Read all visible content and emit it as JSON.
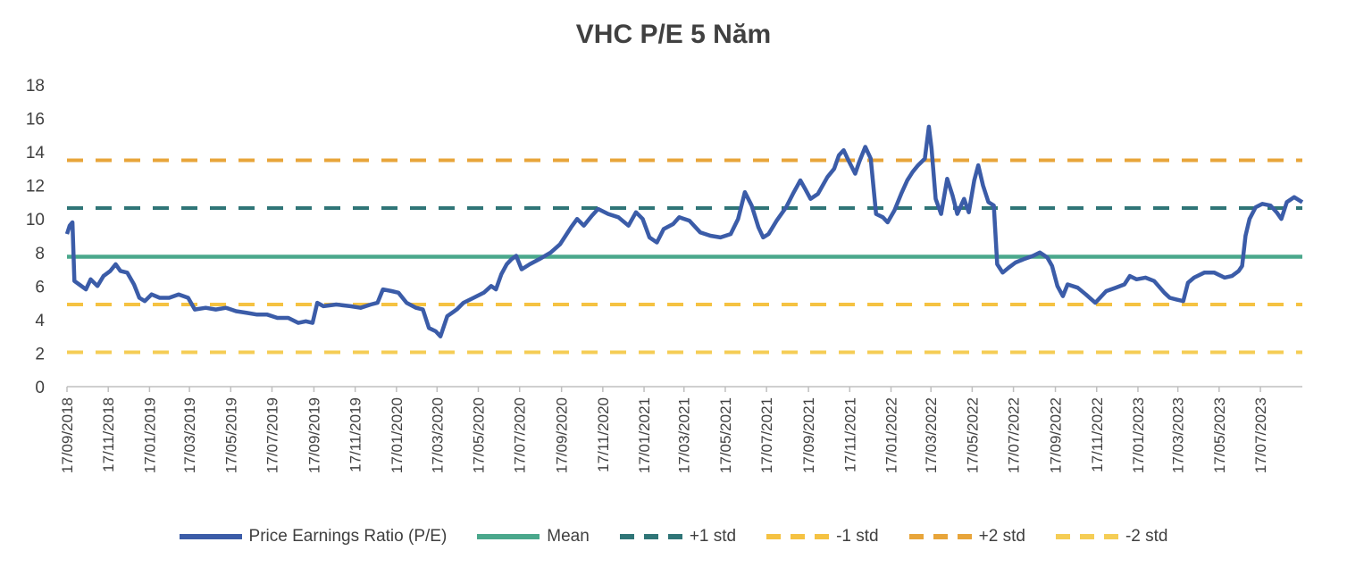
{
  "chart_data": {
    "type": "line",
    "title": "VHC P/E 5 Năm",
    "xlabel": "",
    "ylabel": "",
    "ylim": [
      0,
      18
    ],
    "yticks": [
      0,
      2,
      4,
      6,
      8,
      10,
      12,
      14,
      16,
      18
    ],
    "x_start": "2018-09-17",
    "x_end": "2023-09-17",
    "x_ticks": [
      "17/09/2018",
      "17/11/2018",
      "17/01/2019",
      "17/03/2019",
      "17/05/2019",
      "17/07/2019",
      "17/09/2019",
      "17/11/2019",
      "17/01/2020",
      "17/03/2020",
      "17/05/2020",
      "17/07/2020",
      "17/09/2020",
      "17/11/2020",
      "17/01/2021",
      "17/03/2021",
      "17/05/2021",
      "17/07/2021",
      "17/09/2021",
      "17/11/2021",
      "17/01/2022",
      "17/03/2022",
      "17/05/2022",
      "17/07/2022",
      "17/09/2022",
      "17/11/2022",
      "17/01/2023",
      "17/03/2023",
      "17/05/2023",
      "17/07/2023"
    ],
    "grid": false,
    "legend_position": "bottom",
    "series": [
      {
        "name": "Price Earnings Ratio (P/E)",
        "color": "#3b5ca8",
        "style": "solid",
        "points": [
          [
            "2018-09-17",
            9.1
          ],
          [
            "2018-09-21",
            9.6
          ],
          [
            "2018-09-25",
            9.8
          ],
          [
            "2018-09-28",
            6.3
          ],
          [
            "2018-10-05",
            6.1
          ],
          [
            "2018-10-15",
            5.8
          ],
          [
            "2018-10-22",
            6.4
          ],
          [
            "2018-11-01",
            6.0
          ],
          [
            "2018-11-10",
            6.6
          ],
          [
            "2018-11-20",
            6.9
          ],
          [
            "2018-11-28",
            7.3
          ],
          [
            "2018-12-05",
            6.9
          ],
          [
            "2018-12-15",
            6.8
          ],
          [
            "2018-12-25",
            6.1
          ],
          [
            "2019-01-02",
            5.3
          ],
          [
            "2019-01-10",
            5.1
          ],
          [
            "2019-01-20",
            5.5
          ],
          [
            "2019-02-01",
            5.3
          ],
          [
            "2019-02-15",
            5.3
          ],
          [
            "2019-03-01",
            5.5
          ],
          [
            "2019-03-15",
            5.3
          ],
          [
            "2019-03-25",
            4.6
          ],
          [
            "2019-04-10",
            4.7
          ],
          [
            "2019-04-25",
            4.6
          ],
          [
            "2019-05-10",
            4.7
          ],
          [
            "2019-05-25",
            4.5
          ],
          [
            "2019-06-10",
            4.4
          ],
          [
            "2019-06-25",
            4.3
          ],
          [
            "2019-07-10",
            4.3
          ],
          [
            "2019-07-25",
            4.1
          ],
          [
            "2019-08-10",
            4.1
          ],
          [
            "2019-08-25",
            3.8
          ],
          [
            "2019-09-05",
            3.9
          ],
          [
            "2019-09-15",
            3.8
          ],
          [
            "2019-09-22",
            5.0
          ],
          [
            "2019-10-01",
            4.8
          ],
          [
            "2019-10-20",
            4.9
          ],
          [
            "2019-11-10",
            4.8
          ],
          [
            "2019-11-25",
            4.7
          ],
          [
            "2019-12-10",
            4.9
          ],
          [
            "2019-12-20",
            5.0
          ],
          [
            "2019-12-28",
            5.8
          ],
          [
            "2020-01-10",
            5.7
          ],
          [
            "2020-01-20",
            5.6
          ],
          [
            "2020-02-01",
            5.0
          ],
          [
            "2020-02-15",
            4.7
          ],
          [
            "2020-02-25",
            4.6
          ],
          [
            "2020-03-05",
            3.5
          ],
          [
            "2020-03-15",
            3.3
          ],
          [
            "2020-03-22",
            3.0
          ],
          [
            "2020-04-01",
            4.2
          ],
          [
            "2020-04-15",
            4.6
          ],
          [
            "2020-04-25",
            5.0
          ],
          [
            "2020-05-10",
            5.3
          ],
          [
            "2020-05-25",
            5.6
          ],
          [
            "2020-06-05",
            6.0
          ],
          [
            "2020-06-12",
            5.8
          ],
          [
            "2020-06-20",
            6.7
          ],
          [
            "2020-06-28",
            7.3
          ],
          [
            "2020-07-05",
            7.6
          ],
          [
            "2020-07-12",
            7.8
          ],
          [
            "2020-07-20",
            7.0
          ],
          [
            "2020-08-01",
            7.3
          ],
          [
            "2020-08-15",
            7.6
          ],
          [
            "2020-09-01",
            8.0
          ],
          [
            "2020-09-15",
            8.5
          ],
          [
            "2020-10-01",
            9.5
          ],
          [
            "2020-10-10",
            10.0
          ],
          [
            "2020-10-20",
            9.6
          ],
          [
            "2020-11-01",
            10.2
          ],
          [
            "2020-11-10",
            10.6
          ],
          [
            "2020-11-25",
            10.3
          ],
          [
            "2020-12-10",
            10.1
          ],
          [
            "2020-12-25",
            9.6
          ],
          [
            "2021-01-05",
            10.4
          ],
          [
            "2021-01-15",
            10.0
          ],
          [
            "2021-01-25",
            8.9
          ],
          [
            "2021-02-05",
            8.6
          ],
          [
            "2021-02-15",
            9.4
          ],
          [
            "2021-03-01",
            9.7
          ],
          [
            "2021-03-10",
            10.1
          ],
          [
            "2021-03-25",
            9.9
          ],
          [
            "2021-04-10",
            9.2
          ],
          [
            "2021-04-25",
            9.0
          ],
          [
            "2021-05-10",
            8.9
          ],
          [
            "2021-05-25",
            9.1
          ],
          [
            "2021-06-05",
            10.0
          ],
          [
            "2021-06-15",
            11.6
          ],
          [
            "2021-06-25",
            10.8
          ],
          [
            "2021-07-05",
            9.5
          ],
          [
            "2021-07-12",
            8.9
          ],
          [
            "2021-07-20",
            9.1
          ],
          [
            "2021-08-01",
            9.9
          ],
          [
            "2021-08-15",
            10.7
          ],
          [
            "2021-08-25",
            11.5
          ],
          [
            "2021-09-05",
            12.3
          ],
          [
            "2021-09-12",
            11.8
          ],
          [
            "2021-09-20",
            11.2
          ],
          [
            "2021-10-01",
            11.5
          ],
          [
            "2021-10-15",
            12.5
          ],
          [
            "2021-10-25",
            13.0
          ],
          [
            "2021-11-01",
            13.8
          ],
          [
            "2021-11-08",
            14.1
          ],
          [
            "2021-11-15",
            13.5
          ],
          [
            "2021-11-25",
            12.7
          ],
          [
            "2021-12-01",
            13.4
          ],
          [
            "2021-12-10",
            14.3
          ],
          [
            "2021-12-18",
            13.6
          ],
          [
            "2021-12-26",
            10.3
          ],
          [
            "2022-01-05",
            10.1
          ],
          [
            "2022-01-12",
            9.8
          ],
          [
            "2022-01-22",
            10.5
          ],
          [
            "2022-02-01",
            11.5
          ],
          [
            "2022-02-10",
            12.3
          ],
          [
            "2022-02-18",
            12.8
          ],
          [
            "2022-02-26",
            13.2
          ],
          [
            "2022-03-08",
            13.6
          ],
          [
            "2022-03-14",
            15.5
          ],
          [
            "2022-03-18",
            14.2
          ],
          [
            "2022-03-24",
            11.2
          ],
          [
            "2022-04-01",
            10.3
          ],
          [
            "2022-04-10",
            12.4
          ],
          [
            "2022-04-18",
            11.4
          ],
          [
            "2022-04-25",
            10.3
          ],
          [
            "2022-05-05",
            11.2
          ],
          [
            "2022-05-12",
            10.4
          ],
          [
            "2022-05-20",
            12.3
          ],
          [
            "2022-05-26",
            13.2
          ],
          [
            "2022-06-02",
            12.0
          ],
          [
            "2022-06-10",
            11.0
          ],
          [
            "2022-06-18",
            10.8
          ],
          [
            "2022-06-23",
            7.3
          ],
          [
            "2022-07-01",
            6.8
          ],
          [
            "2022-07-10",
            7.1
          ],
          [
            "2022-07-20",
            7.4
          ],
          [
            "2022-08-01",
            7.6
          ],
          [
            "2022-08-15",
            7.8
          ],
          [
            "2022-08-25",
            8.0
          ],
          [
            "2022-09-05",
            7.7
          ],
          [
            "2022-09-12",
            7.2
          ],
          [
            "2022-09-20",
            6.0
          ],
          [
            "2022-09-28",
            5.4
          ],
          [
            "2022-10-05",
            6.1
          ],
          [
            "2022-10-20",
            5.9
          ],
          [
            "2022-11-01",
            5.5
          ],
          [
            "2022-11-15",
            5.0
          ],
          [
            "2022-12-01",
            5.7
          ],
          [
            "2022-12-15",
            5.9
          ],
          [
            "2022-12-28",
            6.1
          ],
          [
            "2023-01-05",
            6.6
          ],
          [
            "2023-01-15",
            6.4
          ],
          [
            "2023-01-28",
            6.5
          ],
          [
            "2023-02-10",
            6.3
          ],
          [
            "2023-02-25",
            5.6
          ],
          [
            "2023-03-05",
            5.3
          ],
          [
            "2023-03-15",
            5.2
          ],
          [
            "2023-03-25",
            5.1
          ],
          [
            "2023-04-01",
            6.2
          ],
          [
            "2023-04-10",
            6.5
          ],
          [
            "2023-04-25",
            6.8
          ],
          [
            "2023-05-10",
            6.8
          ],
          [
            "2023-05-25",
            6.5
          ],
          [
            "2023-06-05",
            6.6
          ],
          [
            "2023-06-15",
            6.9
          ],
          [
            "2023-06-20",
            7.2
          ],
          [
            "2023-06-25",
            9.0
          ],
          [
            "2023-07-01",
            10.0
          ],
          [
            "2023-07-10",
            10.7
          ],
          [
            "2023-07-20",
            10.9
          ],
          [
            "2023-08-01",
            10.8
          ],
          [
            "2023-08-10",
            10.4
          ],
          [
            "2023-08-17",
            10.0
          ],
          [
            "2023-08-25",
            11.0
          ],
          [
            "2023-09-05",
            11.3
          ],
          [
            "2023-09-17",
            11.0
          ]
        ]
      },
      {
        "name": "Mean",
        "color": "#4aa88c",
        "style": "solid",
        "value": 7.75
      },
      {
        "name": "+1 std",
        "color": "#2f7577",
        "style": "dashed",
        "value": 10.65
      },
      {
        "name": "-1 std",
        "color": "#f5c242",
        "style": "dashed",
        "value": 4.9
      },
      {
        "name": "+2 std",
        "color": "#e8a53a",
        "style": "dashed",
        "value": 13.5
      },
      {
        "name": "-2 std",
        "color": "#f5cd55",
        "style": "dashed",
        "value": 2.05
      }
    ]
  }
}
